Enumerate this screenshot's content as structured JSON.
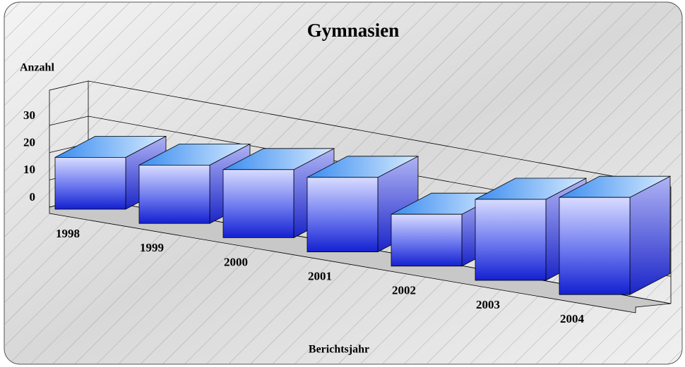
{
  "chart_data": {
    "type": "bar3d",
    "title": "Gymnasien",
    "y_label": "Anzahl",
    "x_label": "Berichtsjahr",
    "categories": [
      "1998",
      "1999",
      "2000",
      "2001",
      "2002",
      "2003",
      "2004"
    ],
    "values": [
      16,
      18,
      21,
      23,
      16,
      25,
      30
    ],
    "color": "#3a4ee0",
    "ylim": [
      0,
      30
    ],
    "yticks": [
      0,
      10,
      20,
      30
    ],
    "grid": true
  }
}
